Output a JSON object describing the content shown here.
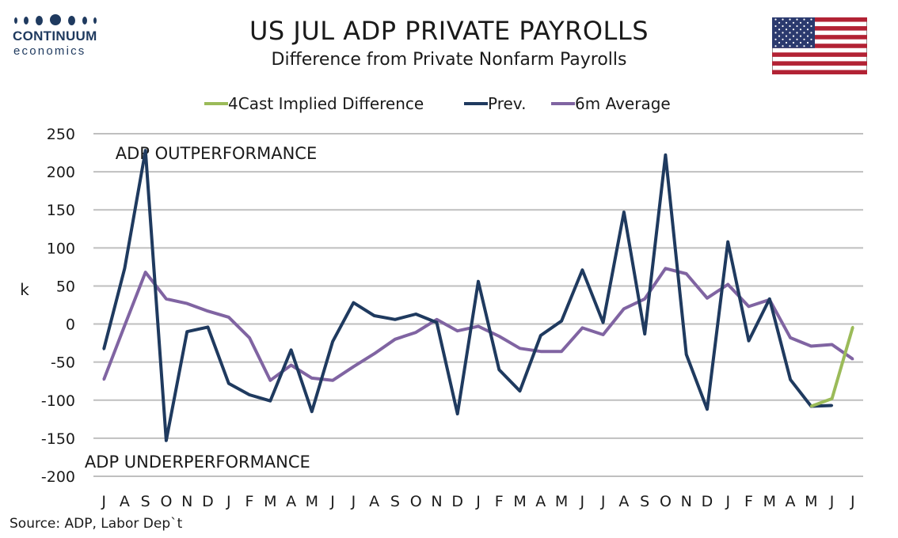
{
  "brand": {
    "name": "CONTINUUM",
    "sub": "economics"
  },
  "flag": {
    "name": "us-flag"
  },
  "source": "Source: ADP, Labor Dep`t",
  "chart_data": {
    "type": "line",
    "title": "US JUL ADP PRIVATE PAYROLLS",
    "subtitle": "Difference from Private Nonfarm Payrolls",
    "ylabel": "k",
    "xlabel": "",
    "ylim": [
      -200,
      250
    ],
    "yticks": [
      250,
      200,
      150,
      100,
      50,
      0,
      -50,
      -100,
      -150,
      -200
    ],
    "grid": true,
    "legend_position": "top",
    "categories": [
      "J",
      "A",
      "S",
      "O",
      "N",
      "D",
      "J",
      "F",
      "M",
      "A",
      "M",
      "J",
      "J",
      "A",
      "S",
      "O",
      "N",
      "D",
      "J",
      "F",
      "M",
      "A",
      "M",
      "J",
      "J",
      "A",
      "S",
      "O",
      "N",
      "D",
      "J",
      "F",
      "M",
      "A",
      "M",
      "J",
      "J"
    ],
    "annotations": [
      {
        "text": "ADP OUTPERFORMANCE",
        "x_index": 5.4,
        "y": 225
      },
      {
        "text": "ADP UNDERPERFORMANCE",
        "x_index": 4.5,
        "y": -180
      }
    ],
    "series": [
      {
        "name": "4Cast Implied Difference",
        "color": "#9bbb59",
        "values": [
          null,
          null,
          null,
          null,
          null,
          null,
          null,
          null,
          null,
          null,
          null,
          null,
          null,
          null,
          null,
          null,
          null,
          null,
          null,
          null,
          null,
          null,
          null,
          null,
          null,
          null,
          null,
          null,
          null,
          null,
          null,
          null,
          null,
          null,
          -108,
          -98,
          -4
        ]
      },
      {
        "name": "Prev.",
        "color": "#1f3a5f",
        "values": [
          -33,
          73,
          228,
          -153,
          -10,
          -4,
          -78,
          -93,
          -101,
          -34,
          -115,
          -23,
          28,
          11,
          6,
          13,
          2,
          -118,
          56,
          -60,
          -88,
          -15,
          4,
          71,
          2,
          147,
          -13,
          222,
          -40,
          -112,
          108,
          -22,
          33,
          -73,
          -108,
          -107,
          null
        ]
      },
      {
        "name": "6m Average",
        "color": "#8064a2",
        "values": [
          -73,
          -2,
          68,
          33,
          27,
          17,
          9,
          -18,
          -74,
          -54,
          -71,
          -74,
          -56,
          -39,
          -20,
          -11,
          6,
          -9,
          -3,
          -16,
          -32,
          -36,
          -36,
          -5,
          -14,
          20,
          33,
          73,
          66,
          34,
          52,
          23,
          32,
          -18,
          -29,
          -27,
          -46
        ]
      }
    ]
  }
}
